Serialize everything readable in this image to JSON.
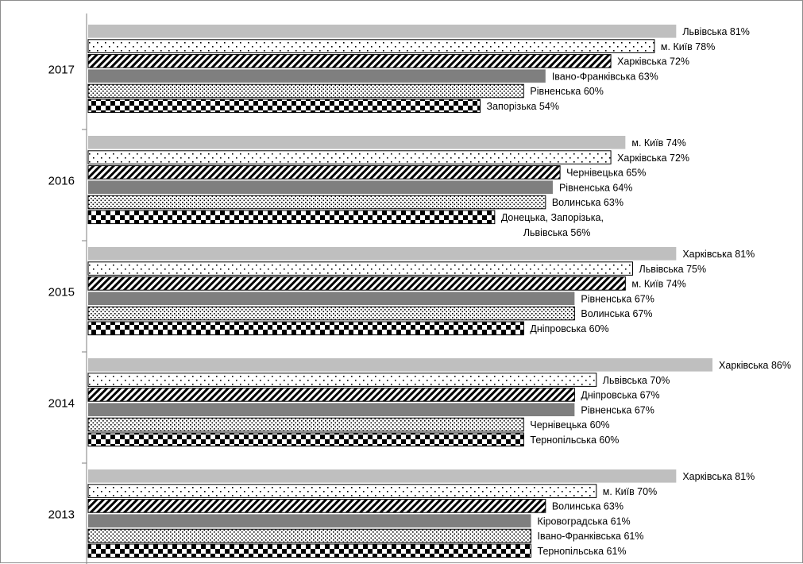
{
  "chart_data": {
    "type": "bar",
    "orientation": "horizontal",
    "grid": false,
    "legend": "none",
    "xlim": [
      0,
      100
    ],
    "groups": [
      {
        "year": "2017",
        "bars": [
          {
            "label": "Львівська 81%",
            "value": 81
          },
          {
            "label": "м. Київ 78%",
            "value": 78
          },
          {
            "label": "Харківська 72%",
            "value": 72
          },
          {
            "label": "Івано-Франківська 63%",
            "value": 63
          },
          {
            "label": "Рівненська 60%",
            "value": 60
          },
          {
            "label": "Запорізька 54%",
            "value": 54
          }
        ]
      },
      {
        "year": "2016",
        "bars": [
          {
            "label": "м. Київ 74%",
            "value": 74
          },
          {
            "label": "Харківська 72%",
            "value": 72
          },
          {
            "label": "Чернівецька 65%",
            "value": 65
          },
          {
            "label": "Рівненська 64%",
            "value": 64
          },
          {
            "label": "Волинська 63%",
            "value": 63
          },
          {
            "label": "Донецька, Запорізька,\nЛьвівська 56%",
            "value": 56
          }
        ]
      },
      {
        "year": "2015",
        "bars": [
          {
            "label": "Харківська 81%",
            "value": 81
          },
          {
            "label": "Львівська 75%",
            "value": 75
          },
          {
            "label": "м. Київ 74%",
            "value": 74
          },
          {
            "label": "Рівненська 67%",
            "value": 67
          },
          {
            "label": "Волинська 67%",
            "value": 67
          },
          {
            "label": "Дніпровська 60%",
            "value": 60
          }
        ]
      },
      {
        "year": "2014",
        "bars": [
          {
            "label": "Харківська 86%",
            "value": 86
          },
          {
            "label": "Львівська 70%",
            "value": 70
          },
          {
            "label": "Дніпровська 67%",
            "value": 67
          },
          {
            "label": "Рівненська 67%",
            "value": 67
          },
          {
            "label": "Чернівецька 60%",
            "value": 60
          },
          {
            "label": "Тернопільська 60%",
            "value": 60
          }
        ]
      },
      {
        "year": "2013",
        "bars": [
          {
            "label": "Харківська 81%",
            "value": 81
          },
          {
            "label": "м. Київ 70%",
            "value": 70
          },
          {
            "label": "Волинська 63%",
            "value": 63
          },
          {
            "label": "Кіровоградська 61%",
            "value": 61
          },
          {
            "label": "Івано-Франківська 61%",
            "value": 61
          },
          {
            "label": "Тернопільська 61%",
            "value": 61
          }
        ]
      }
    ],
    "rank_fills": [
      "solid-light-gray",
      "sparse-dots",
      "diagonal-stripes",
      "solid-dark-gray",
      "dense-dots",
      "checkerboard"
    ],
    "colors": {
      "light_gray": "#bfbfbf",
      "dark_gray": "#7f7f7f",
      "pattern_ink": "#000000",
      "outline": "#000000",
      "axis": "#7f7f7f"
    }
  }
}
